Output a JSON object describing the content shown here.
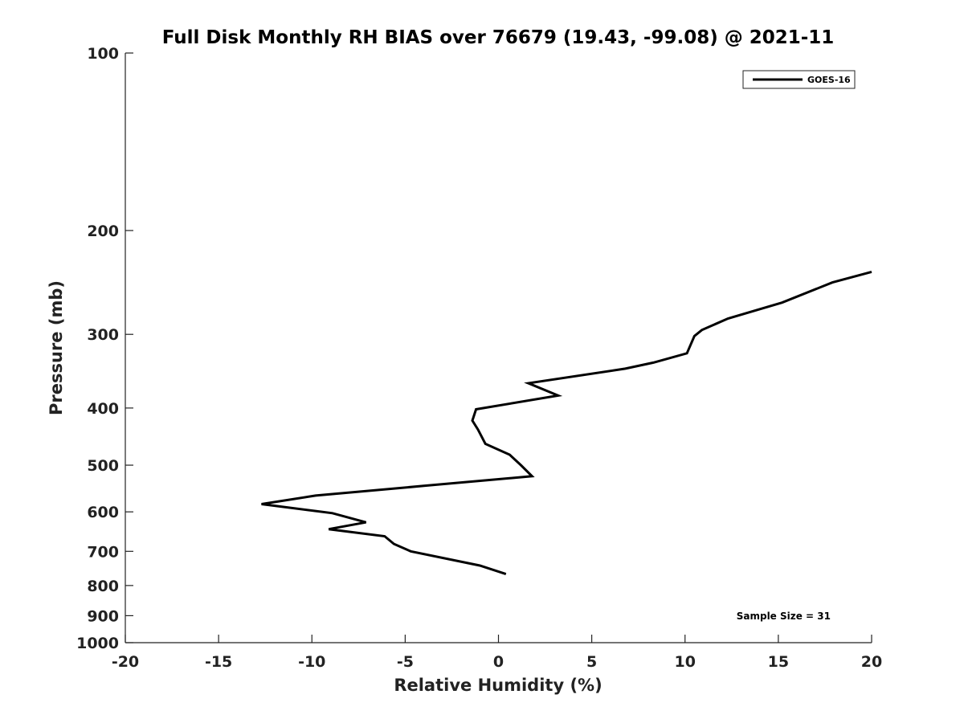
{
  "chart_data": {
    "type": "line",
    "title": "Full Disk Monthly RH BIAS over 76679 (19.43, -99.08) @ 2021-11",
    "xlabel": "Relative Humidity (%)",
    "ylabel": "Pressure (mb)",
    "xlim": [
      -20,
      20
    ],
    "ylim": [
      100,
      1000
    ],
    "y_scale": "log",
    "y_reversed": true,
    "x_ticks": [
      -20,
      -15,
      -10,
      -5,
      0,
      5,
      10,
      15,
      20
    ],
    "x_tick_labels": [
      "-20",
      "-15",
      "-10",
      "-5",
      "0",
      "5",
      "10",
      "15",
      "20"
    ],
    "y_ticks": [
      100,
      200,
      300,
      400,
      500,
      600,
      700,
      800,
      900,
      1000
    ],
    "y_tick_labels": [
      "100",
      "200",
      "300",
      "400",
      "500",
      "600",
      "700",
      "800",
      "900",
      "1000"
    ],
    "grid": false,
    "legend_position": "top-right",
    "annotation": "Sample Size = 31",
    "series": [
      {
        "name": "GOES-16",
        "color": "#000000",
        "x": [
          20.0,
          17.9,
          15.2,
          12.3,
          10.9,
          10.5,
          10.1,
          8.3,
          6.8,
          1.6,
          3.2,
          -1.2,
          -1.4,
          -1.1,
          -0.7,
          0.6,
          1.2,
          1.8,
          -4.0,
          -9.8,
          -12.7,
          -8.9,
          -7.1,
          -9.1,
          -6.1,
          -5.6,
          -4.7,
          -1.0,
          0.4
        ],
        "y": [
          235,
          245,
          265,
          282,
          295,
          302,
          323,
          335,
          343,
          363,
          381,
          402,
          420,
          435,
          460,
          480,
          500,
          522,
          542,
          563,
          582,
          603,
          625,
          642,
          660,
          680,
          700,
          740,
          765
        ]
      }
    ]
  }
}
